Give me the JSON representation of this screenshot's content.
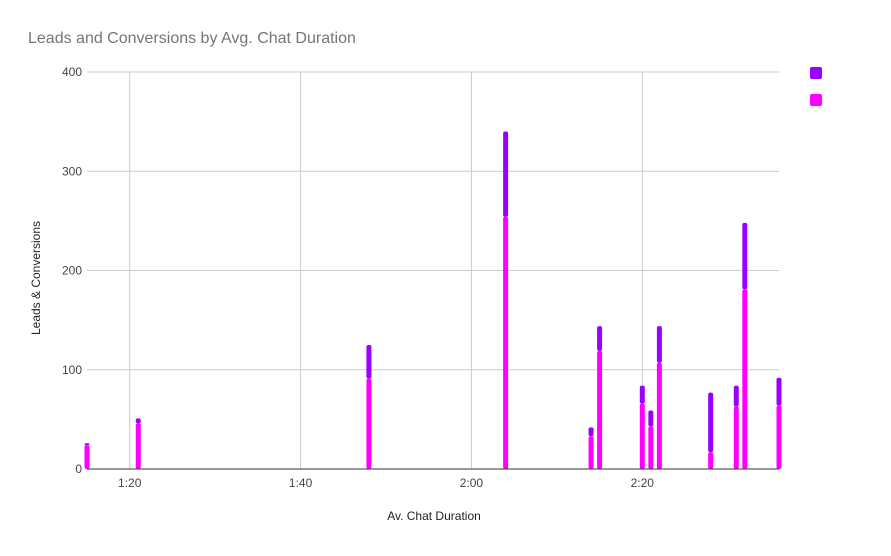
{
  "chart_data": {
    "type": "bar",
    "stacked": true,
    "title": "Leads and Conversions by Avg. Chat Duration",
    "xlabel": "Av. Chat Duration",
    "ylabel": "Leads & Conversions",
    "x_unit": "m:ss",
    "xlim": [
      "1:15",
      "2:36"
    ],
    "ylim": [
      0,
      400
    ],
    "x_ticks": [
      "1:20",
      "1:40",
      "2:00",
      "2:20"
    ],
    "y_ticks": [
      "0",
      "100",
      "200",
      "300",
      "400"
    ],
    "grid": true,
    "legend_position": "right",
    "x": [
      "1:15",
      "1:21",
      "1:48",
      "2:04",
      "2:14",
      "2:15",
      "2:20",
      "2:21",
      "2:22",
      "2:28",
      "2:31",
      "2:32",
      "2:36"
    ],
    "series": [
      {
        "color": "#ff00ff",
        "values": [
          24,
          46,
          91,
          254,
          33,
          119,
          66,
          43,
          107,
          17,
          63,
          181,
          64
        ]
      },
      {
        "color": "#9900ff",
        "values": [
          2,
          5,
          34,
          86,
          9,
          25,
          18,
          16,
          37,
          60,
          21,
          67,
          28
        ]
      }
    ]
  }
}
